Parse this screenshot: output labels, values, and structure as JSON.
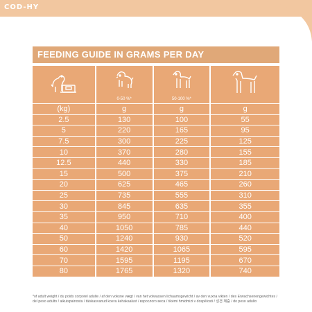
{
  "brand": "COD-HY",
  "guide": {
    "title": "FEEDING GUIDE IN GRAMS PER DAY",
    "columns": [
      {
        "icon": "scale-dog-icon",
        "unit": "(kg)",
        "label": ""
      },
      {
        "icon": "puppy-icon",
        "unit": "g",
        "label": "0-50 %*"
      },
      {
        "icon": "young-dog-icon",
        "unit": "g",
        "label": "50-100 %*"
      },
      {
        "icon": "adult-dog-icon",
        "unit": "g",
        "label": ""
      }
    ],
    "rows": [
      [
        "2.5",
        "130",
        "100",
        "55"
      ],
      [
        "5",
        "220",
        "165",
        "95"
      ],
      [
        "7.5",
        "300",
        "225",
        "125"
      ],
      [
        "10",
        "370",
        "280",
        "155"
      ],
      [
        "12.5",
        "440",
        "330",
        "185"
      ],
      [
        "15",
        "500",
        "375",
        "210"
      ],
      [
        "20",
        "625",
        "465",
        "260"
      ],
      [
        "25",
        "735",
        "555",
        "310"
      ],
      [
        "30",
        "845",
        "635",
        "355"
      ],
      [
        "35",
        "950",
        "710",
        "400"
      ],
      [
        "40",
        "1050",
        "785",
        "440"
      ],
      [
        "50",
        "1240",
        "930",
        "520"
      ],
      [
        "60",
        "1420",
        "1065",
        "595"
      ],
      [
        "70",
        "1595",
        "1195",
        "670"
      ],
      [
        "80",
        "1765",
        "1320",
        "740"
      ]
    ],
    "footnote": "*of adult weight / du poids corporel adulte / af den voksne vægt / van het volwassen lichaamsgewicht / av den vuxna vikten / des Erwachsenengewichtes / del peso adulto / aikuispainosta / täiskasvanud koera kehakaalust / взрослого веса / tikėmi hmidmizi v dospělosti / 성견 체중 / do peso adulto"
  },
  "colors": {
    "accent": "#e9a876",
    "title_bg": "#e0a878",
    "topbar": "#f2c7a0"
  }
}
